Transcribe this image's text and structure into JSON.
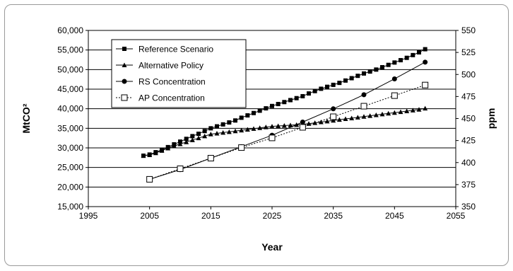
{
  "chart_data": {
    "type": "line",
    "title": "",
    "xlabel": "Year",
    "ylabel_left": "MtCO²",
    "ylabel_right": "ppm",
    "xlim": [
      1995,
      2055
    ],
    "ylim_left": [
      15000,
      60000
    ],
    "ylim_right": [
      350,
      550
    ],
    "x_ticks": [
      1995,
      2005,
      2015,
      2025,
      2035,
      2045,
      2055
    ],
    "y_ticks_left": [
      15000,
      20000,
      25000,
      30000,
      35000,
      40000,
      45000,
      50000,
      55000,
      60000
    ],
    "y_ticks_right": [
      350,
      375,
      400,
      425,
      450,
      475,
      500,
      525,
      550
    ],
    "grid": "horizontal",
    "legend_position": "top-left",
    "series": [
      {
        "name": "Reference Scenario",
        "axis": "left",
        "marker": "filled-square",
        "line": "solid",
        "x": [
          2004,
          2005,
          2006,
          2007,
          2008,
          2009,
          2010,
          2011,
          2012,
          2013,
          2014,
          2015,
          2016,
          2017,
          2018,
          2019,
          2020,
          2021,
          2022,
          2023,
          2024,
          2025,
          2026,
          2027,
          2028,
          2029,
          2030,
          2031,
          2032,
          2033,
          2034,
          2035,
          2036,
          2037,
          2038,
          2039,
          2040,
          2041,
          2042,
          2043,
          2044,
          2045,
          2046,
          2047,
          2048,
          2049,
          2050
        ],
        "y": [
          28000,
          28300,
          28900,
          29500,
          30200,
          30900,
          31600,
          32300,
          33000,
          33600,
          34300,
          35000,
          35500,
          36000,
          36500,
          37000,
          37700,
          38300,
          38900,
          39500,
          40100,
          40700,
          41200,
          41700,
          42200,
          42700,
          43200,
          43900,
          44500,
          45100,
          45600,
          46100,
          46600,
          47200,
          47800,
          48400,
          49000,
          49500,
          50000,
          50600,
          51200,
          51800,
          52400,
          53000,
          53700,
          54400,
          55200
        ]
      },
      {
        "name": "Alternative Policy",
        "axis": "left",
        "marker": "filled-triangle",
        "line": "solid",
        "x": [
          2004,
          2005,
          2006,
          2007,
          2008,
          2009,
          2010,
          2011,
          2012,
          2013,
          2014,
          2015,
          2016,
          2017,
          2018,
          2019,
          2020,
          2021,
          2022,
          2023,
          2024,
          2025,
          2026,
          2027,
          2028,
          2029,
          2030,
          2031,
          2032,
          2033,
          2034,
          2035,
          2036,
          2037,
          2038,
          2039,
          2040,
          2041,
          2042,
          2043,
          2044,
          2045,
          2046,
          2047,
          2048,
          2049,
          2050
        ],
        "y": [
          28000,
          28200,
          28700,
          29300,
          29900,
          30500,
          31000,
          31500,
          32000,
          32500,
          33000,
          33500,
          33700,
          33900,
          34100,
          34300,
          34500,
          34700,
          34900,
          35100,
          35300,
          35500,
          35600,
          35700,
          35800,
          35900,
          36000,
          36200,
          36400,
          36600,
          36800,
          37000,
          37200,
          37400,
          37600,
          37800,
          38000,
          38200,
          38400,
          38600,
          38800,
          39000,
          39200,
          39400,
          39600,
          39800,
          40100
        ]
      },
      {
        "name": "RS Concentration",
        "axis": "right",
        "marker": "filled-circle",
        "line": "solid",
        "x": [
          2005,
          2010,
          2015,
          2020,
          2025,
          2030,
          2035,
          2040,
          2045,
          2050
        ],
        "y": [
          381,
          392,
          405,
          418,
          431,
          446,
          461,
          477,
          495,
          514
        ]
      },
      {
        "name": "AP Concentration",
        "axis": "right",
        "marker": "open-square",
        "line": "dotted",
        "x": [
          2005,
          2010,
          2015,
          2020,
          2025,
          2030,
          2035,
          2040,
          2045,
          2050
        ],
        "y": [
          381,
          393,
          405,
          417,
          428,
          440,
          452,
          464,
          476,
          488
        ]
      }
    ]
  }
}
